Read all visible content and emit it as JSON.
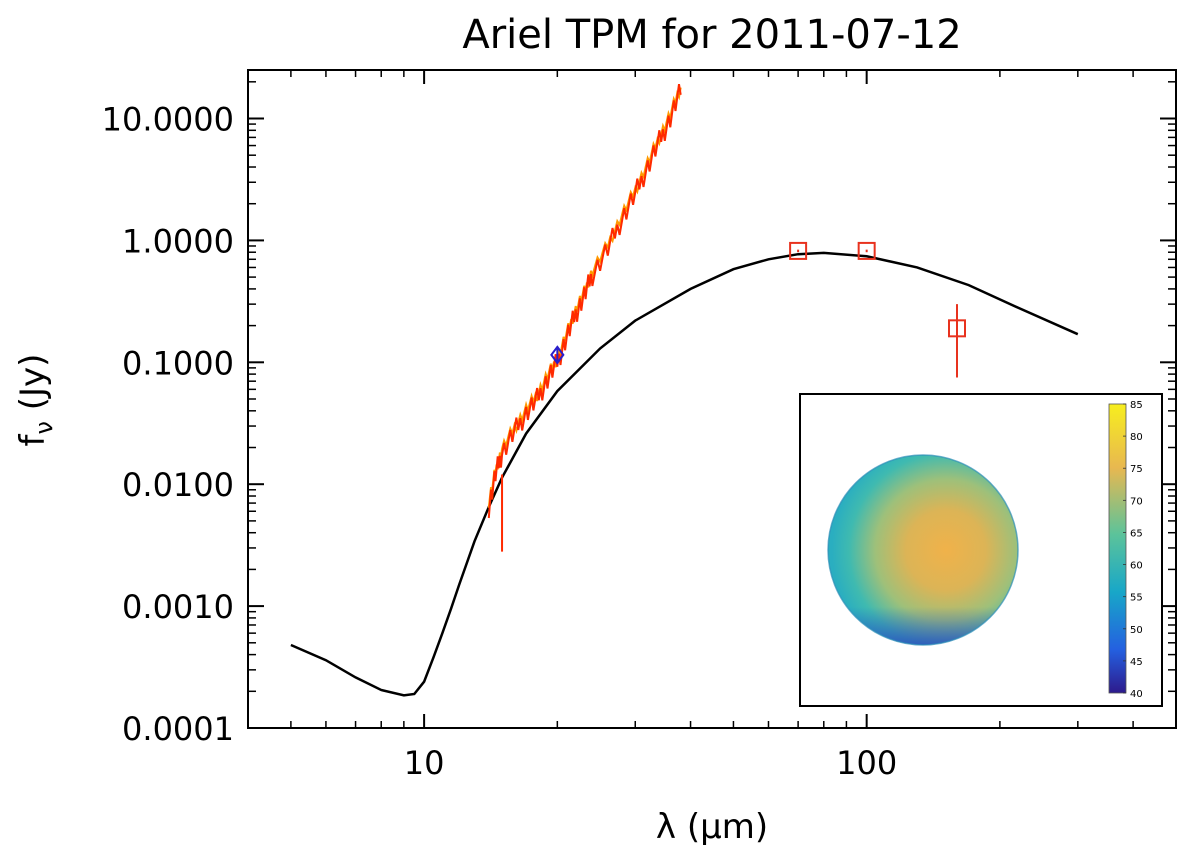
{
  "chart_data": {
    "type": "line",
    "title": "Ariel TPM for 2011-07-12",
    "xlabel": "λ (μm)",
    "ylabel_main": "f",
    "ylabel_sub": "ν",
    "ylabel_unit": " (Jy)",
    "x_scale": "log",
    "y_scale": "log",
    "xlim": [
      4.0,
      500.0
    ],
    "ylim": [
      0.0001,
      25.0
    ],
    "x_ticks": [
      {
        "value": 10,
        "label": "10"
      },
      {
        "value": 100,
        "label": "100"
      }
    ],
    "y_ticks": [
      {
        "value": 0.0001,
        "label": "0.0001"
      },
      {
        "value": 0.001,
        "label": "0.0010"
      },
      {
        "value": 0.01,
        "label": "0.0100"
      },
      {
        "value": 0.1,
        "label": "0.1000"
      },
      {
        "value": 1.0,
        "label": "1.0000"
      },
      {
        "value": 10.0,
        "label": "10.0000"
      }
    ],
    "grid": false,
    "colors": {
      "model": "#000000",
      "spectrum_primary": "#ff2a00",
      "spectrum_secondary": "#ff9a00",
      "photometry": "#e8321e",
      "wise_point": "#2a1fcc"
    },
    "series": [
      {
        "kind": "model",
        "points": [
          [
            5.0,
            0.00048
          ],
          [
            6.0,
            0.00036
          ],
          [
            7.0,
            0.00026
          ],
          [
            8.0,
            0.000205
          ],
          [
            9.0,
            0.000185
          ],
          [
            9.5,
            0.00019
          ],
          [
            10.0,
            0.00024
          ],
          [
            10.5,
            0.00038
          ],
          [
            11.0,
            0.0006
          ],
          [
            11.5,
            0.00095
          ],
          [
            12.0,
            0.0015
          ],
          [
            13.0,
            0.0034
          ],
          [
            14.0,
            0.0065
          ],
          [
            15.0,
            0.0113
          ],
          [
            17.0,
            0.026
          ],
          [
            20.0,
            0.058
          ],
          [
            25.0,
            0.13
          ],
          [
            30.0,
            0.22
          ],
          [
            40.0,
            0.4
          ],
          [
            50.0,
            0.58
          ],
          [
            60.0,
            0.7
          ],
          [
            70.0,
            0.77
          ],
          [
            80.0,
            0.79
          ],
          [
            100.0,
            0.74
          ],
          [
            130.0,
            0.6
          ],
          [
            170.0,
            0.43
          ],
          [
            220.0,
            0.28
          ],
          [
            300.0,
            0.17
          ]
        ]
      },
      {
        "kind": "spectrum",
        "points": [
          [
            14.0,
            0.0065
          ],
          [
            14.5,
            0.012
          ],
          [
            15.0,
            0.018
          ],
          [
            16.0,
            0.027
          ],
          [
            17.0,
            0.038
          ],
          [
            18.0,
            0.05
          ],
          [
            19.0,
            0.072
          ],
          [
            20.0,
            0.1
          ],
          [
            21.0,
            0.16
          ],
          [
            22.0,
            0.25
          ],
          [
            23.0,
            0.35
          ],
          [
            24.0,
            0.52
          ],
          [
            26.0,
            0.85
          ],
          [
            28.0,
            1.5
          ],
          [
            30.0,
            2.4
          ],
          [
            32.0,
            4.0
          ],
          [
            34.0,
            6.5
          ],
          [
            36.0,
            10.0
          ],
          [
            38.0,
            17.0
          ]
        ]
      },
      {
        "kind": "spectrum_error",
        "points": [
          [
            15.0,
            0.0028,
            0.012
          ]
        ]
      },
      {
        "kind": "photometry",
        "points": [
          {
            "x": 70,
            "y": 0.82,
            "yerr_low": 0.8,
            "yerr_high": 0.84
          },
          {
            "x": 100,
            "y": 0.82,
            "yerr_low": 0.8,
            "yerr_high": 0.84
          },
          {
            "x": 160,
            "y": 0.19,
            "yerr_low": 0.075,
            "yerr_high": 0.3
          }
        ]
      },
      {
        "kind": "wise_point",
        "points": [
          {
            "x": 20,
            "y": 0.115,
            "yerr_low": 0.1,
            "yerr_high": 0.13
          }
        ]
      }
    ],
    "inset": {
      "colorbar_ticks": [
        85,
        80,
        75,
        70,
        65,
        60,
        55,
        50,
        45,
        40
      ],
      "colorbar_min": 40,
      "colorbar_max": 85
    }
  }
}
